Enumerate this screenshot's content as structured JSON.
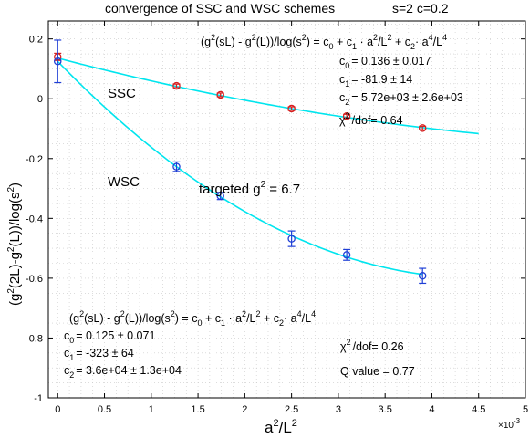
{
  "chart_data": {
    "type": "scatter",
    "title": "convergence of SSC and WSC schemes",
    "title_params": "s=2   c=0.2",
    "xlabel_base": "a",
    "xlabel_sup1": "2",
    "xlabel_mid": "/L",
    "xlabel_sup2": "2",
    "ylabel_part1": "(g",
    "ylabel_sup1": "2",
    "ylabel_part2": "(2L)-g",
    "ylabel_sup2": "2",
    "ylabel_part3": "(L))/log(s",
    "ylabel_sup3": "2",
    "ylabel_part4": ")",
    "x_exponent": "×10",
    "x_exponent_power": "-3",
    "xlim": [
      -0.0001,
      0.005
    ],
    "ylim": [
      -1,
      0.26
    ],
    "x_tick_values": [
      0,
      0.0005,
      0.001,
      0.0015,
      0.002,
      0.0025,
      0.003,
      0.0035,
      0.004,
      0.0045,
      0.005
    ],
    "x_tick_labels": [
      "0",
      "0.5",
      "1",
      "1.5",
      "2",
      "2.5",
      "3",
      "3.5",
      "4",
      "4.5",
      "5"
    ],
    "y_tick_values": [
      0.2,
      0,
      -0.2,
      -0.4,
      -0.6,
      -0.8,
      -1
    ],
    "y_tick_labels": [
      "0.2",
      "0",
      "-0.2",
      "-0.4",
      "-0.6",
      "-0.8",
      "-1"
    ],
    "grid": "dotted",
    "fit_color": "#00e5ee",
    "series": [
      {
        "name": "SSC",
        "color": "#d62020",
        "x": [
          0,
          0.00127,
          0.00174,
          0.0025,
          0.00309,
          0.0039
        ],
        "y": [
          0.14,
          0.043,
          0.013,
          -0.033,
          -0.058,
          -0.098
        ],
        "yerr": [
          0.012,
          0.006,
          0.006,
          0.006,
          0.006,
          0.006
        ],
        "fit": {
          "c0": 0.136,
          "c1": -81.9,
          "c2": 5720,
          "xmax": 0.0045
        }
      },
      {
        "name": "WSC",
        "color": "#1f3fd6",
        "x": [
          0,
          0.00127,
          0.00174,
          0.0025,
          0.00309,
          0.0039
        ],
        "y": [
          0.125,
          -0.227,
          -0.325,
          -0.468,
          -0.522,
          -0.592
        ],
        "yerr": [
          0.071,
          0.016,
          0.012,
          0.026,
          0.018,
          0.025
        ],
        "fit": {
          "c0": 0.125,
          "c1": -323,
          "c2": 36000,
          "xmax": 0.0039
        }
      }
    ],
    "labels": {
      "ssc": "SSC",
      "wsc": "WSC",
      "targeted_prefix": "targeted g",
      "targeted_sup": "2",
      "targeted_suffix": " = 6.7"
    },
    "annotations": {
      "ssc": {
        "formula": [
          "(g",
          "2",
          "(sL) - g",
          "2",
          "(L))/log(s",
          "2",
          ") = c",
          "0",
          " + c",
          "1",
          " · a",
          "2",
          "/L",
          "2",
          " + c",
          "2",
          "· a",
          "4",
          "/L",
          "4"
        ],
        "c0": [
          "c",
          "0",
          "=  0.136 ± 0.017"
        ],
        "c1": [
          "c",
          "1",
          "=  -81.9 ± 14"
        ],
        "c2": [
          "c",
          "2",
          "=  5.72e+03 ± 2.6e+03"
        ],
        "chi": [
          "χ",
          "2",
          "/dof= 0.64"
        ]
      },
      "wsc": {
        "formula": [
          "(g",
          "2",
          "(sL) - g",
          "2",
          "(L))/log(s",
          "2",
          ") = c",
          "0",
          " + c",
          "1",
          " · a",
          "2",
          "/L",
          "2",
          " + c",
          "2",
          "· a",
          "4",
          "/L",
          "4"
        ],
        "c0": [
          "c",
          "0",
          "=  0.125 ± 0.071"
        ],
        "c1": [
          "c",
          "1",
          "=  -323 ± 64"
        ],
        "c2": [
          "c",
          "2",
          "=  3.6e+04 ± 1.3e+04"
        ],
        "chi": [
          "χ",
          "2",
          "/dof= 0.26"
        ],
        "q": "Q value = 0.77"
      }
    }
  }
}
